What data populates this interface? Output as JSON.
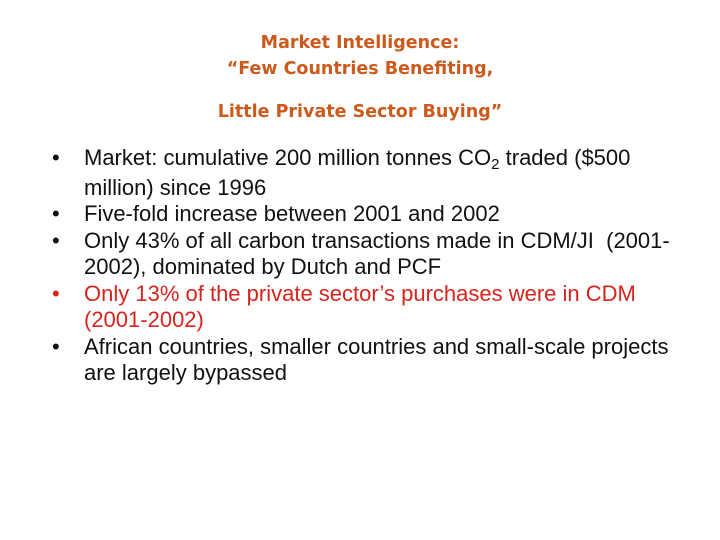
{
  "title": {
    "line1": "Market Intelligence:",
    "line2": "“Few Countries Benefiting,",
    "line3": "Little Private Sector Buying”"
  },
  "bullet_symbol": "•",
  "bullets": [
    {
      "before": "Market: cumulative 200 million tonnes CO",
      "subscript": "2",
      "after": " traded ($500 million) since 1996"
    },
    {
      "text": "Five-fold increase between 2001 and 2002"
    },
    {
      "text": "Only 43% of all carbon transactions made in CDM/JI  (2001-2002), dominated by Dutch and PCF"
    },
    {
      "text": "Only 13% of the private sector’s purchases were in CDM (2001-2002)"
    },
    {
      "text": "African countries, smaller countries and small-scale projects are largely bypassed"
    }
  ],
  "colors": {
    "title": "#cc5a1c",
    "body_text": "#111111",
    "highlight": "#d7241c",
    "background": "#ffffff"
  }
}
